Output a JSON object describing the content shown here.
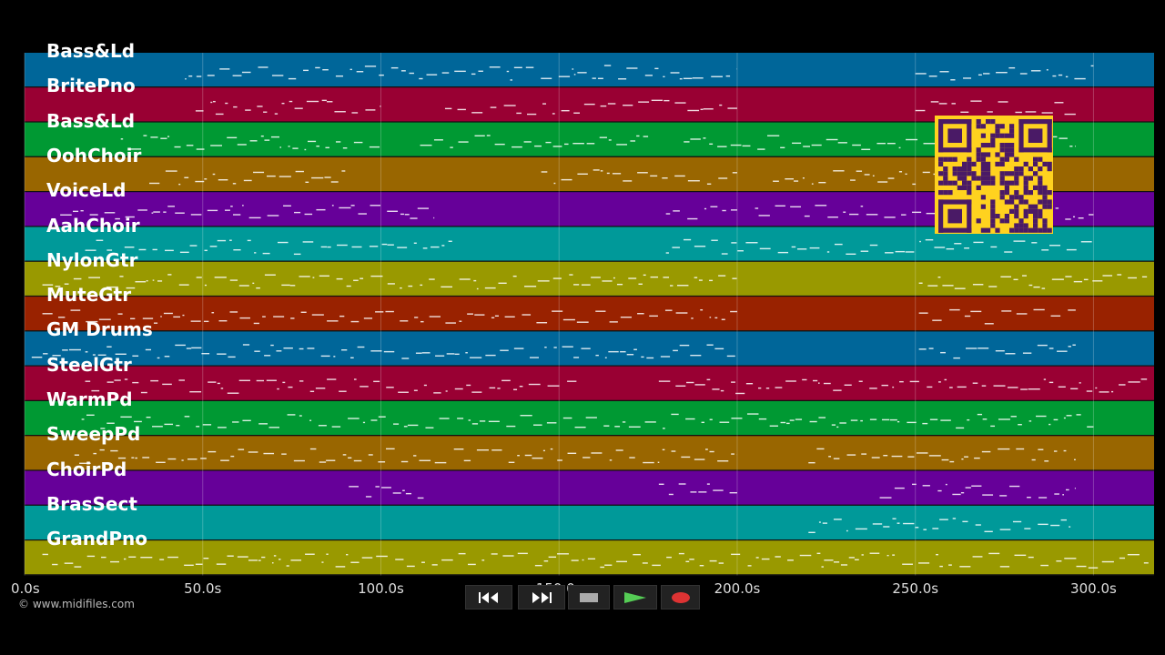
{
  "app": {
    "copyright": "© www.midifiles.com",
    "time_axis": {
      "unit": "s",
      "start": 0,
      "end": 317,
      "tick_labels": [
        "0.0s",
        "50.0s",
        "100.0s",
        "150.0s",
        "200.0s",
        "250.0s",
        "300.0s"
      ],
      "tick_values": [
        0,
        50,
        100,
        150,
        200,
        250,
        300
      ]
    },
    "tracks": [
      {
        "label": "Bass&Ld",
        "color": "#006699"
      },
      {
        "label": "BritePno",
        "color": "#990033"
      },
      {
        "label": "Bass&Ld",
        "color": "#009933"
      },
      {
        "label": "OohChoir",
        "color": "#996600"
      },
      {
        "label": "VoiceLd",
        "color": "#660099"
      },
      {
        "label": "AahChoir",
        "color": "#009999"
      },
      {
        "label": "NylonGtr",
        "color": "#999900"
      },
      {
        "label": "MuteGtr",
        "color": "#992200"
      },
      {
        "label": "GM Drums",
        "color": "#006699"
      },
      {
        "label": "SteelGtr",
        "color": "#990033"
      },
      {
        "label": "WarmPd",
        "color": "#009933"
      },
      {
        "label": "SweepPd",
        "color": "#996600"
      },
      {
        "label": "ChoirPd",
        "color": "#660099"
      },
      {
        "label": "BrasSect",
        "color": "#009999"
      },
      {
        "label": "GrandPno",
        "color": "#999900"
      }
    ],
    "transport": {
      "rewind_icon": "rewind-icon",
      "forward_icon": "fast-forward-icon",
      "stop_icon": "stop-icon",
      "play_icon": "play-icon",
      "record_icon": "record-icon",
      "play_color": "#55cc55",
      "record_color": "#dd3333"
    }
  }
}
